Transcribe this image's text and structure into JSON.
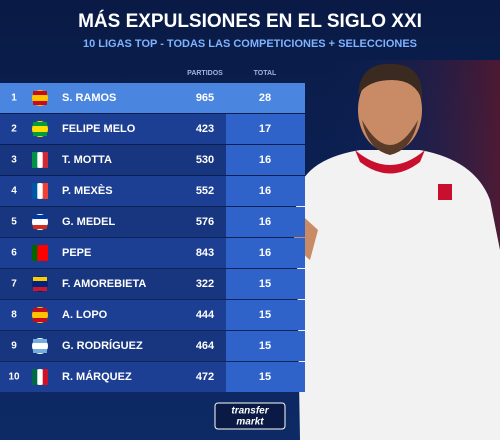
{
  "header": {
    "title": "MÁS EXPULSIONES EN EL SIGLO XXI",
    "subtitle": "10 LIGAS TOP - TODAS LAS COMPETICIONES + SELECCIONES"
  },
  "table": {
    "columns": [
      "PARTIDOS",
      "TOTAL"
    ],
    "rows": [
      {
        "rank": 1,
        "player": "S. RAMOS",
        "matches": 965,
        "total": 28
      },
      {
        "rank": 2,
        "player": "FELIPE MELO",
        "matches": 423,
        "total": 17
      },
      {
        "rank": 3,
        "player": "T. MOTTA",
        "matches": 530,
        "total": 16
      },
      {
        "rank": 4,
        "player": "P. MEXÈS",
        "matches": 552,
        "total": 16
      },
      {
        "rank": 5,
        "player": "G. MEDEL",
        "matches": 576,
        "total": 16
      },
      {
        "rank": 6,
        "player": "PEPE",
        "matches": 843,
        "total": 16
      },
      {
        "rank": 7,
        "player": "F. AMOREBIETA",
        "matches": 322,
        "total": 15
      },
      {
        "rank": 8,
        "player": "A. LOPO",
        "matches": 444,
        "total": 15
      },
      {
        "rank": 9,
        "player": "G. RODRÍGUEZ",
        "matches": 464,
        "total": 15
      },
      {
        "rank": 10,
        "player": "R. MÁRQUEZ",
        "matches": 472,
        "total": 15
      }
    ]
  },
  "footer": {
    "logo_lines": [
      "transfer",
      "markt"
    ]
  }
}
